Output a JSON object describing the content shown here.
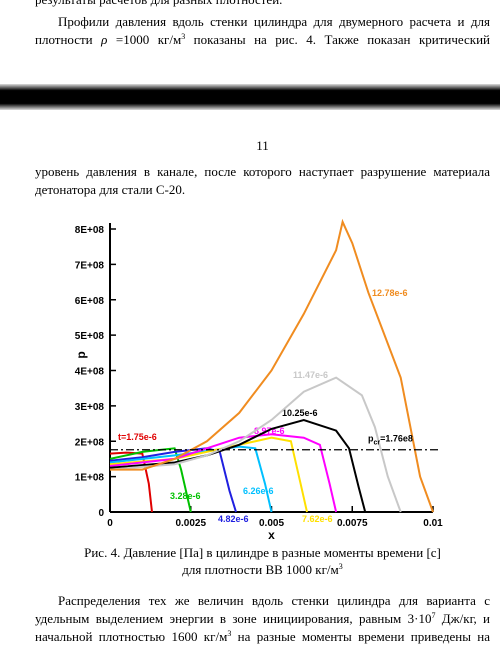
{
  "document": {
    "top_fragment": "результаты расчетов для разных плотностей.",
    "p1_line1": "Профили давления вдоль стенки цилиндра для двумерного расчета и для",
    "p1_line2": {
      "a": "плотности",
      "rho": "ρ",
      "b": "=1000 кг/м",
      "sup": "3",
      "c": "показаны на рис. 4. Также показан критический"
    },
    "page_number": "11",
    "p2_line1": "уровень давления в канале, после которого наступает разрушение материала",
    "p2_line2": "детонатора для стали С-20.",
    "caption_line1": "Рис. 4. Давление [Па] в цилиндре в разные моменты времени [с]",
    "caption_line2": {
      "a": "для плотности ВВ 1000 кг/м",
      "sup": "3"
    },
    "p3_line1": "Распределения тех же величин вдоль стенки цилиндра для варианта с",
    "p3_line2": {
      "a": "удельным выделением энергии в зоне инициирования, равным 3·10",
      "sup": "7",
      "b": "Дж/кг, и"
    },
    "p3_line3": {
      "a": "начальной плотностью 1600 кг/м",
      "sup": "3",
      "b": "на разные моменты времени приведены на"
    }
  },
  "chart_data": {
    "type": "line",
    "x_label": "x",
    "y_label": "p",
    "xlim": [
      0,
      0.01
    ],
    "ylim": [
      0,
      800000000
    ],
    "xticks": [
      0,
      0.0025,
      0.005,
      0.0075,
      0.01
    ],
    "yticks": [
      0,
      {
        "value": 100000000,
        "label": "1E+08"
      },
      {
        "value": 200000000,
        "label": "2E+08"
      },
      {
        "value": 300000000,
        "label": "3E+08"
      },
      {
        "value": 400000000,
        "label": "4E+08"
      },
      {
        "value": 500000000,
        "label": "5E+08"
      },
      {
        "value": 600000000,
        "label": "6E+08"
      },
      {
        "value": 700000000,
        "label": "7E+08"
      },
      {
        "value": 800000000,
        "label": "8E+08"
      }
    ],
    "critical": {
      "symbol": "p",
      "sub": "cr",
      "text": "=1.76e8",
      "value": 176000000
    },
    "series": [
      {
        "name": "t=1.75e-6",
        "color": "#e00000",
        "x": [
          0,
          0.0005,
          0.001,
          0.0012,
          0.0013
        ],
        "values": [
          165000000,
          168000000,
          165000000,
          80000000,
          0
        ]
      },
      {
        "name": "3.28e-6",
        "color": "#00c000",
        "x": [
          0,
          0.001,
          0.002,
          0.0022,
          0.0025
        ],
        "values": [
          150000000,
          170000000,
          180000000,
          120000000,
          0
        ]
      },
      {
        "name": "4.82e-6",
        "color": "#2020e0",
        "x": [
          0,
          0.001,
          0.002,
          0.003,
          0.0034,
          0.0037,
          0.0039
        ],
        "values": [
          145000000,
          155000000,
          170000000,
          180000000,
          170000000,
          60000000,
          0
        ]
      },
      {
        "name": "6.26e-6",
        "color": "#00c0ff",
        "x": [
          0,
          0.002,
          0.004,
          0.0045,
          0.0048,
          0.005
        ],
        "values": [
          140000000,
          160000000,
          185000000,
          180000000,
          80000000,
          0
        ]
      },
      {
        "name": "7.62e-6",
        "color": "#ffe000",
        "x": [
          0,
          0.002,
          0.004,
          0.005,
          0.0056,
          0.0059,
          0.0061
        ],
        "values": [
          135000000,
          150000000,
          190000000,
          210000000,
          200000000,
          80000000,
          0
        ]
      },
      {
        "name": "8.97e-6",
        "color": "#ff00ff",
        "x": [
          0,
          0.002,
          0.003,
          0.004,
          0.005,
          0.006,
          0.0065,
          0.0068,
          0.007
        ],
        "values": [
          130000000,
          150000000,
          180000000,
          210000000,
          220000000,
          210000000,
          190000000,
          80000000,
          0
        ]
      },
      {
        "name": "10.25e-6",
        "color": "#000000",
        "x": [
          0,
          0.002,
          0.003,
          0.004,
          0.005,
          0.006,
          0.007,
          0.0074,
          0.0077,
          0.0079
        ],
        "values": [
          125000000,
          140000000,
          160000000,
          190000000,
          235000000,
          260000000,
          230000000,
          180000000,
          70000000,
          0
        ]
      },
      {
        "name": "11.47e-6",
        "color": "#c8c8c8",
        "x": [
          0,
          0.002,
          0.003,
          0.004,
          0.005,
          0.006,
          0.007,
          0.0078,
          0.0082,
          0.0086,
          0.009
        ],
        "values": [
          120000000,
          135000000,
          160000000,
          200000000,
          260000000,
          340000000,
          380000000,
          330000000,
          240000000,
          100000000,
          0
        ]
      },
      {
        "name": "12.78e-6",
        "color": "#f08c20",
        "x": [
          0,
          0.001,
          0.002,
          0.003,
          0.004,
          0.005,
          0.006,
          0.007,
          0.0072,
          0.0075,
          0.008,
          0.009,
          0.0096,
          0.01
        ],
        "values": [
          120000000,
          120000000,
          150000000,
          200000000,
          280000000,
          400000000,
          560000000,
          740000000,
          820000000,
          760000000,
          620000000,
          380000000,
          100000000,
          0
        ]
      }
    ]
  }
}
